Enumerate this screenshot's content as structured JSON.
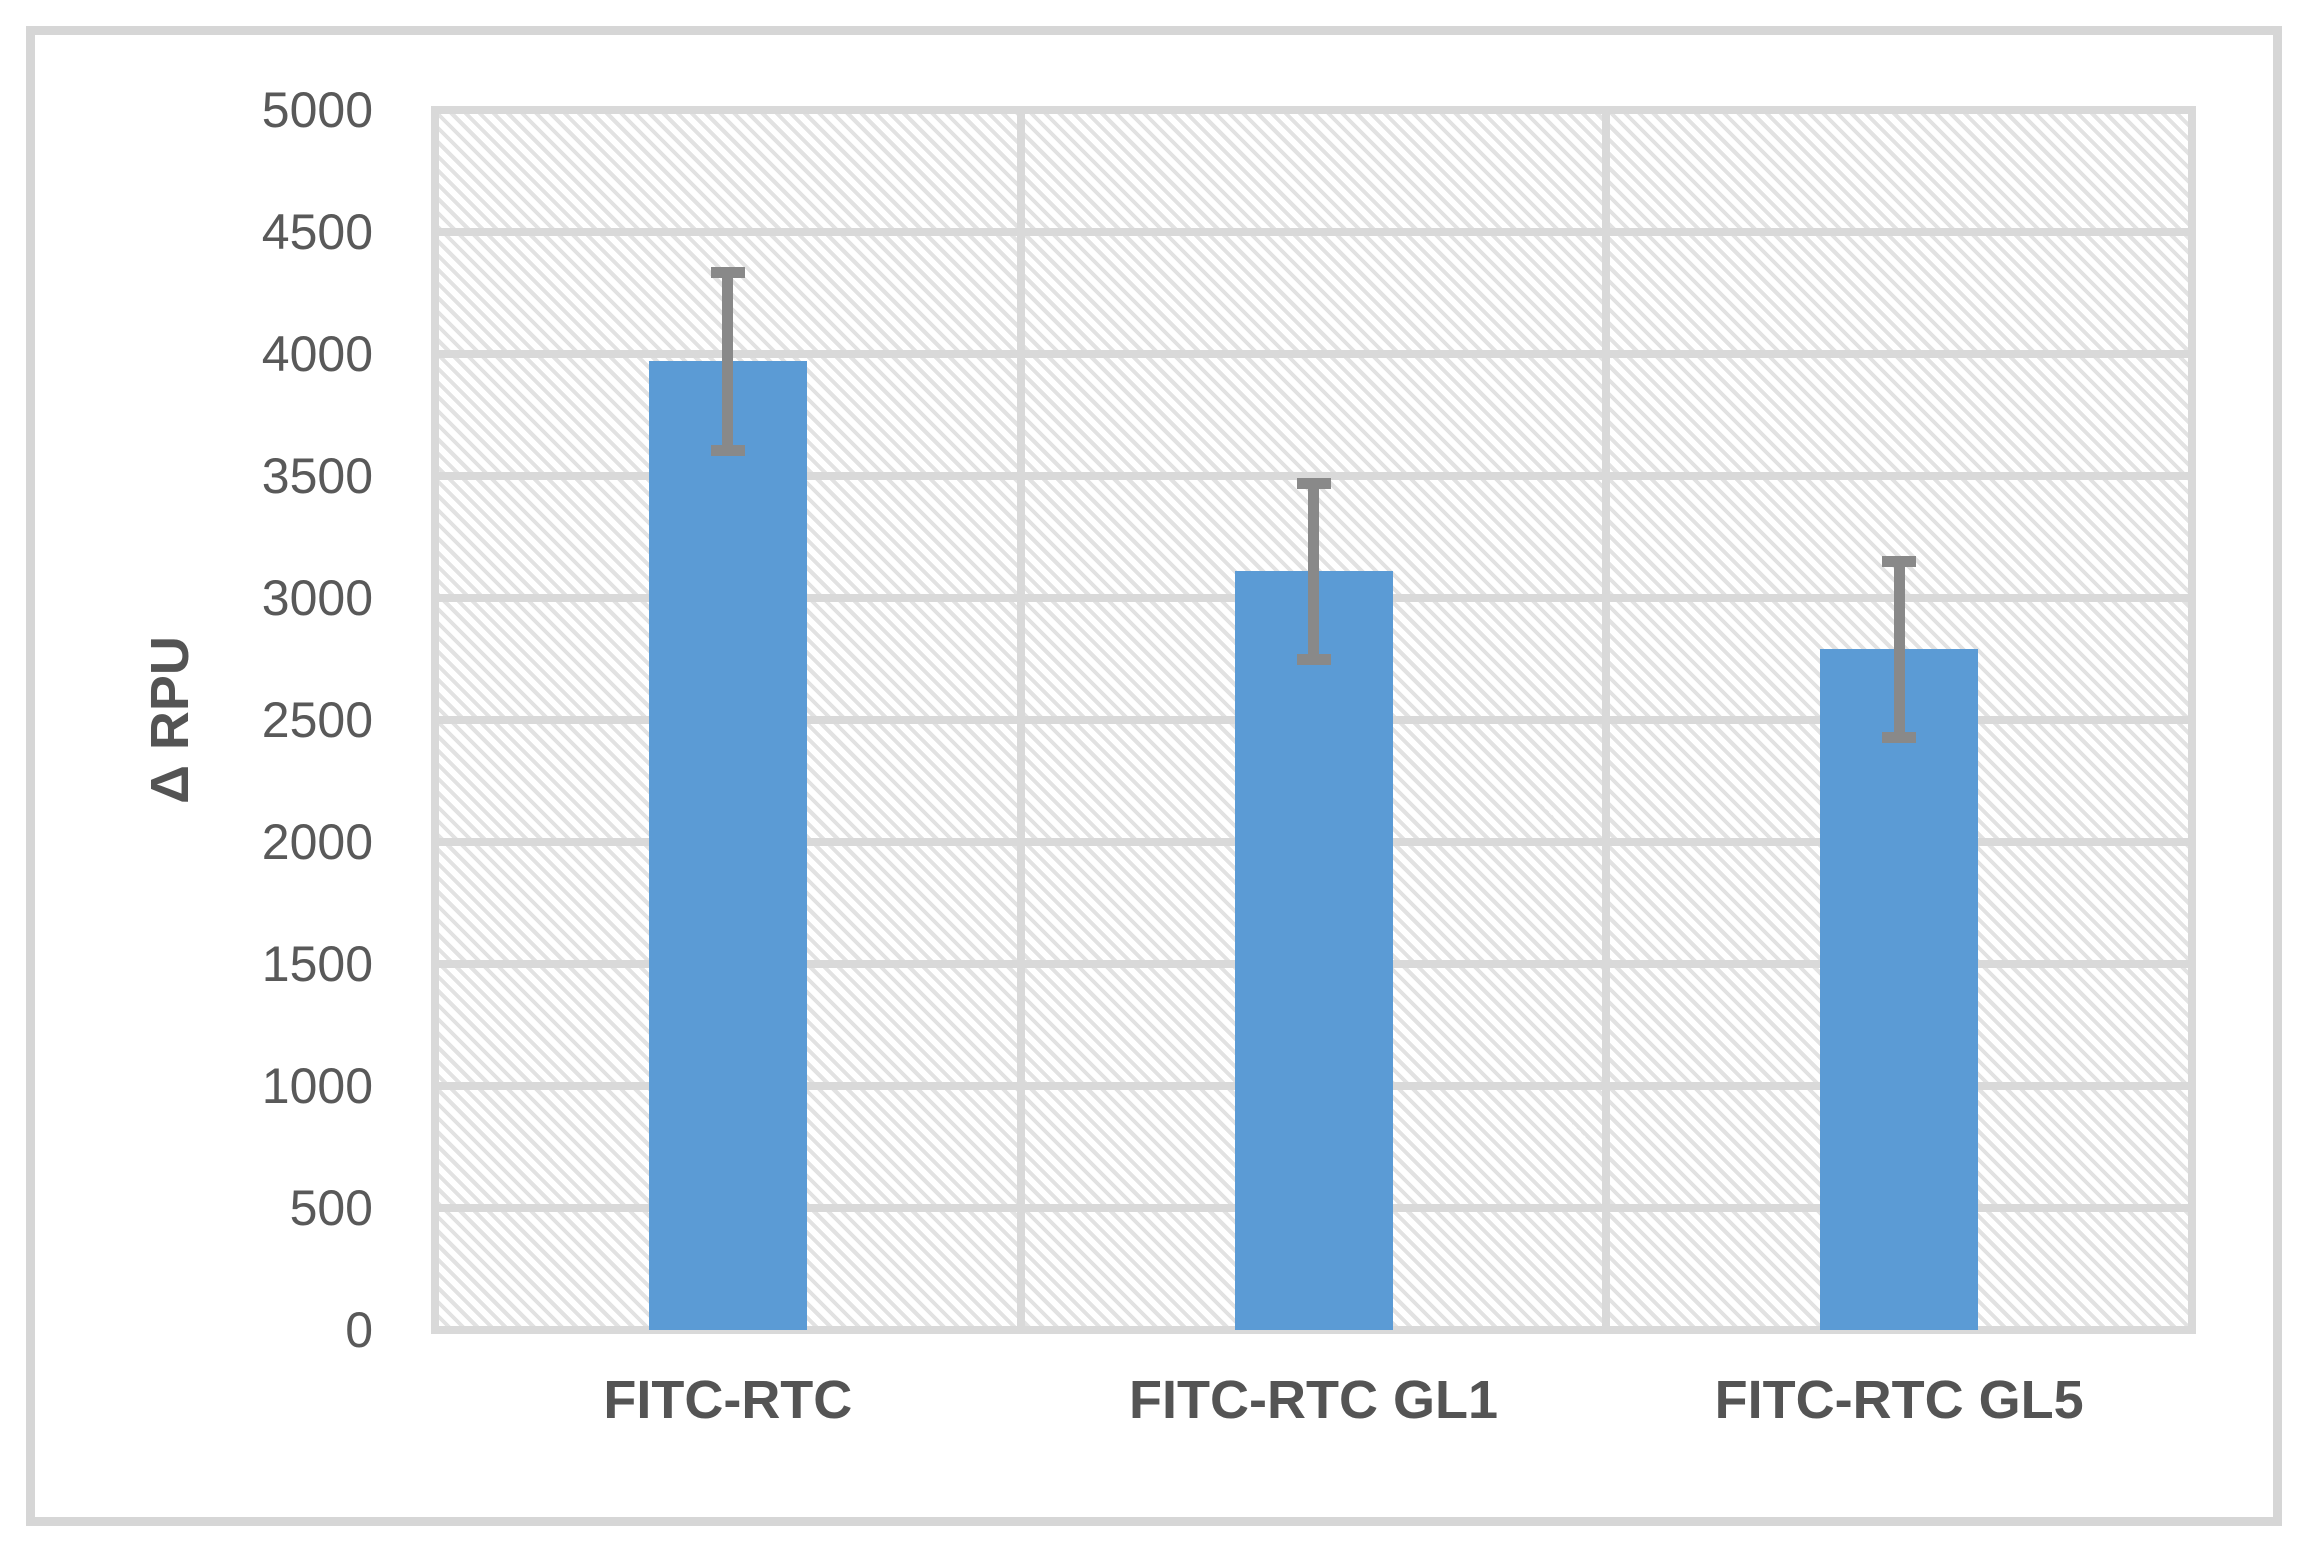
{
  "chart_data": {
    "type": "bar",
    "title": "",
    "xlabel": "",
    "ylabel": "Δ RPU",
    "categories": [
      "FITC-RTC",
      "FITC-RTC GL1",
      "FITC-RTC GL5"
    ],
    "values": [
      3970,
      3110,
      2790
    ],
    "error_bars": [
      365,
      360,
      360
    ],
    "ylim": [
      0,
      5000
    ],
    "ytick_step": 500,
    "ytick_labels": [
      "0",
      "500",
      "1000",
      "1500",
      "2000",
      "2500",
      "3000",
      "3500",
      "4000",
      "4500",
      "5000"
    ],
    "grid": "horizontal and vertical category gridlines on",
    "legend": "none",
    "plot_area_fill": "light diagonal hatch pattern",
    "colors": {
      "bar_fill": "#5b9bd5",
      "error_bar": "#898989",
      "gridline": "#d9d9d9",
      "hatch_line": "#e2e2e2",
      "axis_text": "#595959",
      "category_text": "#545454",
      "frame_border": "#d6d6d6"
    }
  }
}
